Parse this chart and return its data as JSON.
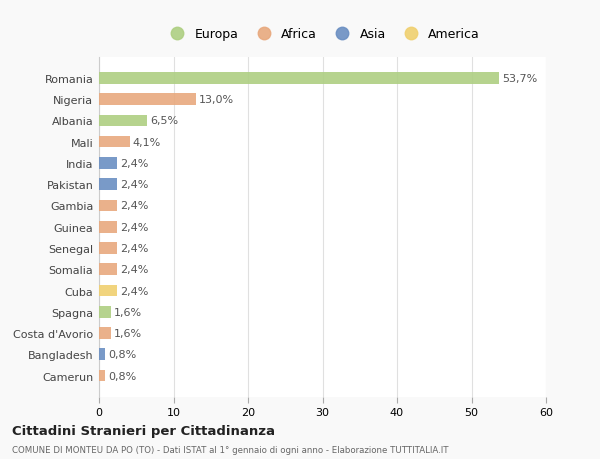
{
  "countries": [
    "Romania",
    "Nigeria",
    "Albania",
    "Mali",
    "India",
    "Pakistan",
    "Gambia",
    "Guinea",
    "Senegal",
    "Somalia",
    "Cuba",
    "Spagna",
    "Costa d'Avorio",
    "Bangladesh",
    "Camerun"
  ],
  "values": [
    53.7,
    13.0,
    6.5,
    4.1,
    2.4,
    2.4,
    2.4,
    2.4,
    2.4,
    2.4,
    2.4,
    1.6,
    1.6,
    0.8,
    0.8
  ],
  "labels": [
    "53,7%",
    "13,0%",
    "6,5%",
    "4,1%",
    "2,4%",
    "2,4%",
    "2,4%",
    "2,4%",
    "2,4%",
    "2,4%",
    "2,4%",
    "1,6%",
    "1,6%",
    "0,8%",
    "0,8%"
  ],
  "colors": [
    "#aecf82",
    "#e8a97e",
    "#aecf82",
    "#e8a97e",
    "#6b8fc2",
    "#6b8fc2",
    "#e8a97e",
    "#e8a97e",
    "#e8a97e",
    "#e8a97e",
    "#f0d070",
    "#aecf82",
    "#e8a97e",
    "#6b8fc2",
    "#e8a97e"
  ],
  "legend_labels": [
    "Europa",
    "Africa",
    "Asia",
    "America"
  ],
  "legend_colors": [
    "#aecf82",
    "#e8a97e",
    "#6b8fc2",
    "#f0d070"
  ],
  "title": "Cittadini Stranieri per Cittadinanza",
  "subtitle": "COMUNE DI MONTEU DA PO (TO) - Dati ISTAT al 1° gennaio di ogni anno - Elaborazione TUTTITALIA.IT",
  "xlim": [
    0,
    60
  ],
  "xticks": [
    0,
    10,
    20,
    30,
    40,
    50,
    60
  ],
  "background_color": "#f9f9f9",
  "plot_bg_color": "#ffffff",
  "grid_color": "#e0e0e0",
  "bar_height": 0.55,
  "label_fontsize": 8,
  "ytick_fontsize": 8,
  "xtick_fontsize": 8
}
